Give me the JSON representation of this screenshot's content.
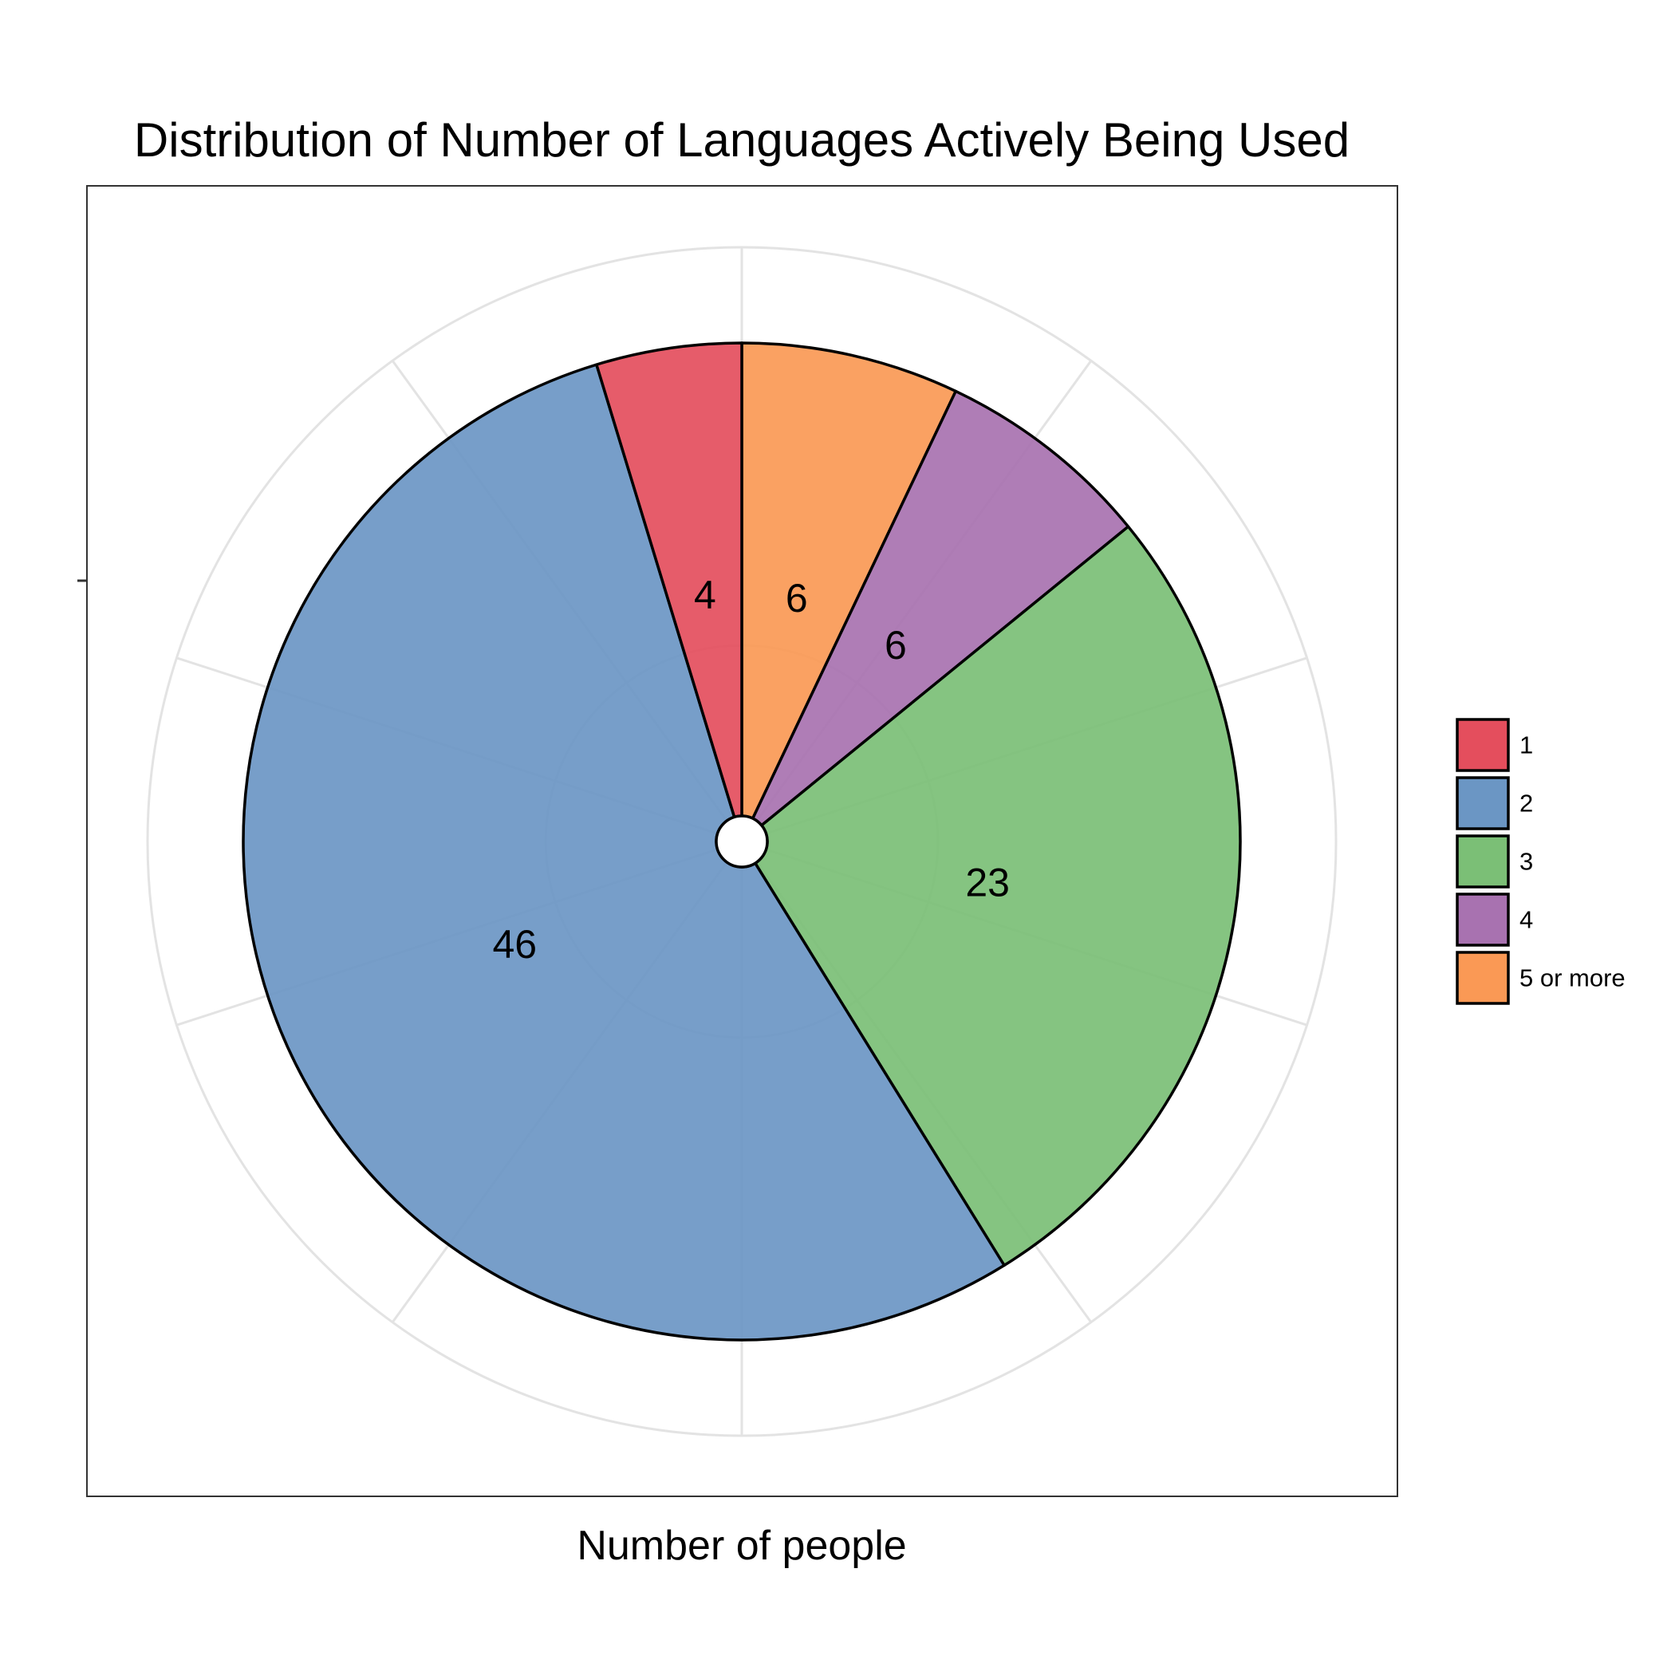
{
  "chart_data": {
    "type": "pie",
    "title": "Distribution of Number of Languages Actively Being Used",
    "xlabel": "Number of people",
    "ylabel": "",
    "grid": true,
    "legend_position": "right",
    "categories": [
      "1",
      "2",
      "3",
      "4",
      "5 or more"
    ],
    "values": [
      4,
      46,
      23,
      6,
      6
    ],
    "colors": [
      "#e44e5d",
      "#6b96c4",
      "#7bbf76",
      "#a872b0",
      "#fa9955"
    ],
    "draw_order": [
      "5 or more",
      "4",
      "3",
      "2",
      "1"
    ]
  }
}
